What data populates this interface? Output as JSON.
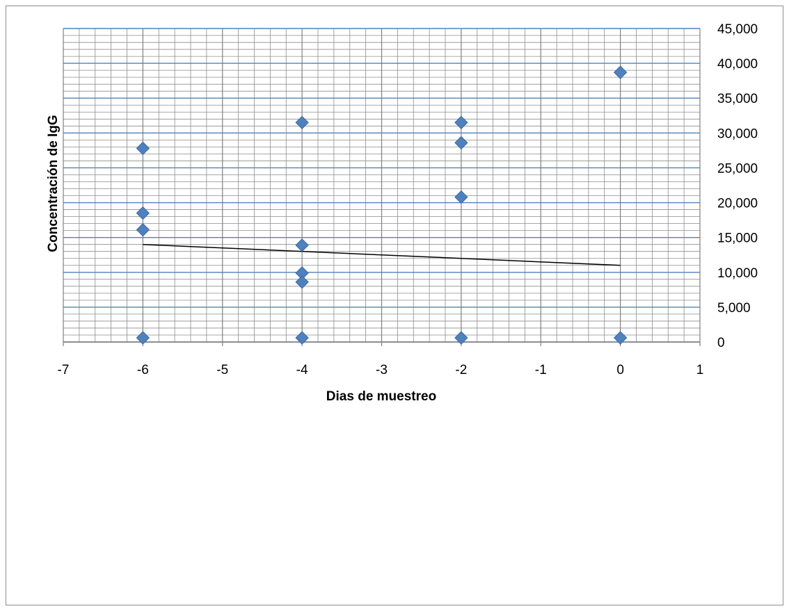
{
  "chart_data": {
    "type": "scatter",
    "title": "",
    "xlabel": "Dias de muestreo",
    "ylabel": "Concentración de IgG",
    "xlim": [
      -7,
      1
    ],
    "ylim": [
      0,
      45000
    ],
    "x_ticks": [
      -7,
      -6,
      -5,
      -4,
      -3,
      -2,
      -1,
      0,
      1
    ],
    "x_tick_labels": [
      "-7",
      "-6",
      "-5",
      "-4",
      "-3",
      "-2",
      "-1",
      "0",
      "1"
    ],
    "y_ticks": [
      0,
      5000,
      10000,
      15000,
      20000,
      25000,
      30000,
      35000,
      40000,
      45000
    ],
    "y_tick_labels": [
      "0",
      "5,000",
      "10,000",
      "15,000",
      "20,000",
      "25,000",
      "30,000",
      "35,000",
      "40,000",
      "45,000"
    ],
    "y_axis_position": "right",
    "grid": true,
    "legend": "none",
    "colors": {
      "marker": "#4f81bd",
      "major_grid": "#4f81bd",
      "minor_grid": "#8c8c8c",
      "trendline": "#000000"
    },
    "series": [
      {
        "points": [
          {
            "x": -6,
            "y": 27800
          },
          {
            "x": -6,
            "y": 18500
          },
          {
            "x": -6,
            "y": 16100
          },
          {
            "x": -6,
            "y": 600
          },
          {
            "x": -4,
            "y": 31500
          },
          {
            "x": -4,
            "y": 13900
          },
          {
            "x": -4,
            "y": 9900
          },
          {
            "x": -4,
            "y": 8600
          },
          {
            "x": -4,
            "y": 600
          },
          {
            "x": -2,
            "y": 31500
          },
          {
            "x": -2,
            "y": 28600
          },
          {
            "x": -2,
            "y": 20800
          },
          {
            "x": -2,
            "y": 600
          },
          {
            "x": 0,
            "y": 38700
          },
          {
            "x": 0,
            "y": 600
          }
        ]
      }
    ],
    "trendline": {
      "type": "linear",
      "x": [
        -6,
        0
      ],
      "y": [
        14000,
        11000
      ]
    }
  }
}
